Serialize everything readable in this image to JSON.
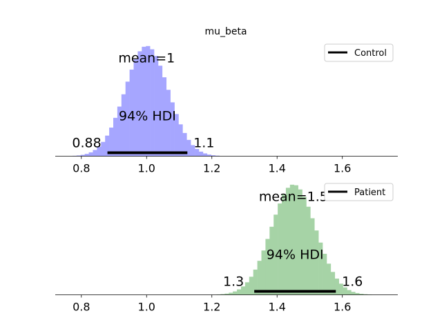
{
  "chart_data": {
    "type": "histogram",
    "title": "mu_beta",
    "xlabel": "",
    "ylabel": "",
    "xlim": [
      0.72,
      1.77
    ],
    "xticks": [
      "0.8",
      "1.0",
      "1.2",
      "1.4",
      "1.6"
    ],
    "grid": false,
    "panels": [
      {
        "legend_label": "Control",
        "legend_position": "upper-right",
        "color": "#a6a6ff",
        "mean_label": "mean=1",
        "mean": 1.0,
        "hdi_label": "94% HDI",
        "hdi": [
          0.88,
          1.125
        ],
        "hdi_lower_label": "0.88",
        "hdi_upper_label": "1.1",
        "sd": 0.066
      },
      {
        "legend_label": "Patient",
        "legend_position": "upper-right",
        "color": "#a6d3a6",
        "mean_label": "mean=1.5",
        "mean": 1.45,
        "hdi_label": "94% HDI",
        "hdi": [
          1.33,
          1.58
        ],
        "hdi_lower_label": "1.3",
        "hdi_upper_label": "1.6",
        "sd": 0.068
      }
    ]
  }
}
